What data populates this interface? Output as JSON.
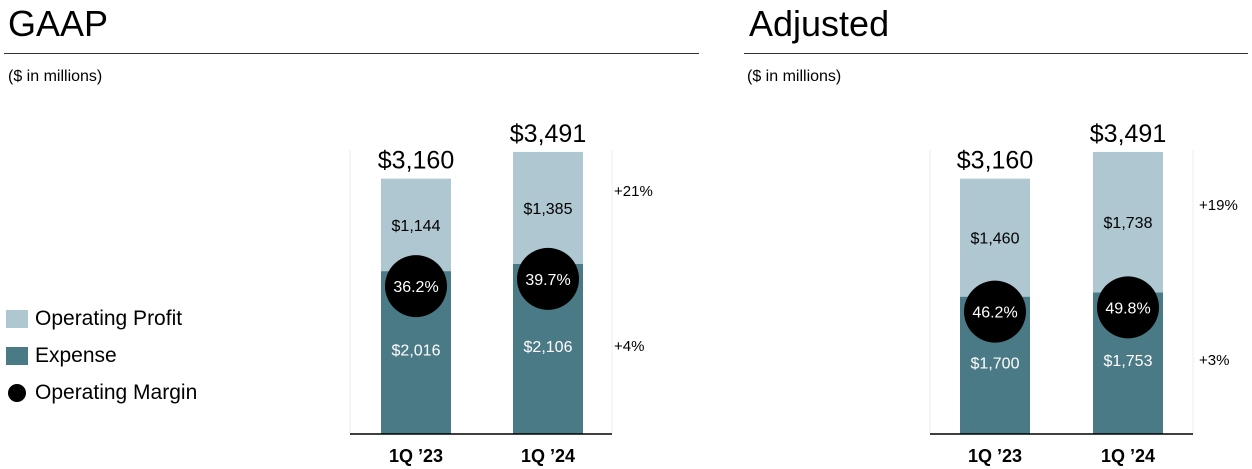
{
  "colors": {
    "operating_profit": "#aec7d0",
    "expense": "#4b7a87",
    "margin": "#000000"
  },
  "legend": {
    "items": [
      {
        "label": "Operating Profit",
        "color": "#aec7d0"
      },
      {
        "label": "Expense",
        "color": "#4b7a87"
      },
      {
        "label": "Operating Margin",
        "color": "#000000"
      }
    ]
  },
  "chart_data": [
    {
      "type": "bar",
      "stacked": true,
      "title": "GAAP",
      "subtitle": "($ in millions)",
      "categories": [
        "1Q ’23",
        "1Q ’24"
      ],
      "series": [
        {
          "name": "Expense",
          "values": [
            2016,
            2106
          ],
          "labels": [
            "$2,016",
            "$2,106"
          ]
        },
        {
          "name": "Operating Profit",
          "values": [
            1144,
            1385
          ],
          "labels": [
            "$1,144",
            "$1,385"
          ]
        }
      ],
      "totals": [
        "$3,160",
        "$3,491"
      ],
      "margins": [
        "36.2%",
        "39.7%"
      ],
      "growth": {
        "Operating Profit": "+21%",
        "Expense": "+4%"
      },
      "ylim": [
        0,
        3700
      ]
    },
    {
      "type": "bar",
      "stacked": true,
      "title": "Adjusted",
      "subtitle": "($ in millions)",
      "categories": [
        "1Q ’23",
        "1Q ’24"
      ],
      "series": [
        {
          "name": "Expense",
          "values": [
            1700,
            1753
          ],
          "labels": [
            "$1,700",
            "$1,753"
          ]
        },
        {
          "name": "Operating Profit",
          "values": [
            1460,
            1738
          ],
          "labels": [
            "$1,460",
            "$1,738"
          ]
        }
      ],
      "totals": [
        "$3,160",
        "$3,491"
      ],
      "margins": [
        "46.2%",
        "49.8%"
      ],
      "growth": {
        "Operating Profit": "+19%",
        "Expense": "+3%"
      },
      "ylim": [
        0,
        3700
      ]
    }
  ]
}
